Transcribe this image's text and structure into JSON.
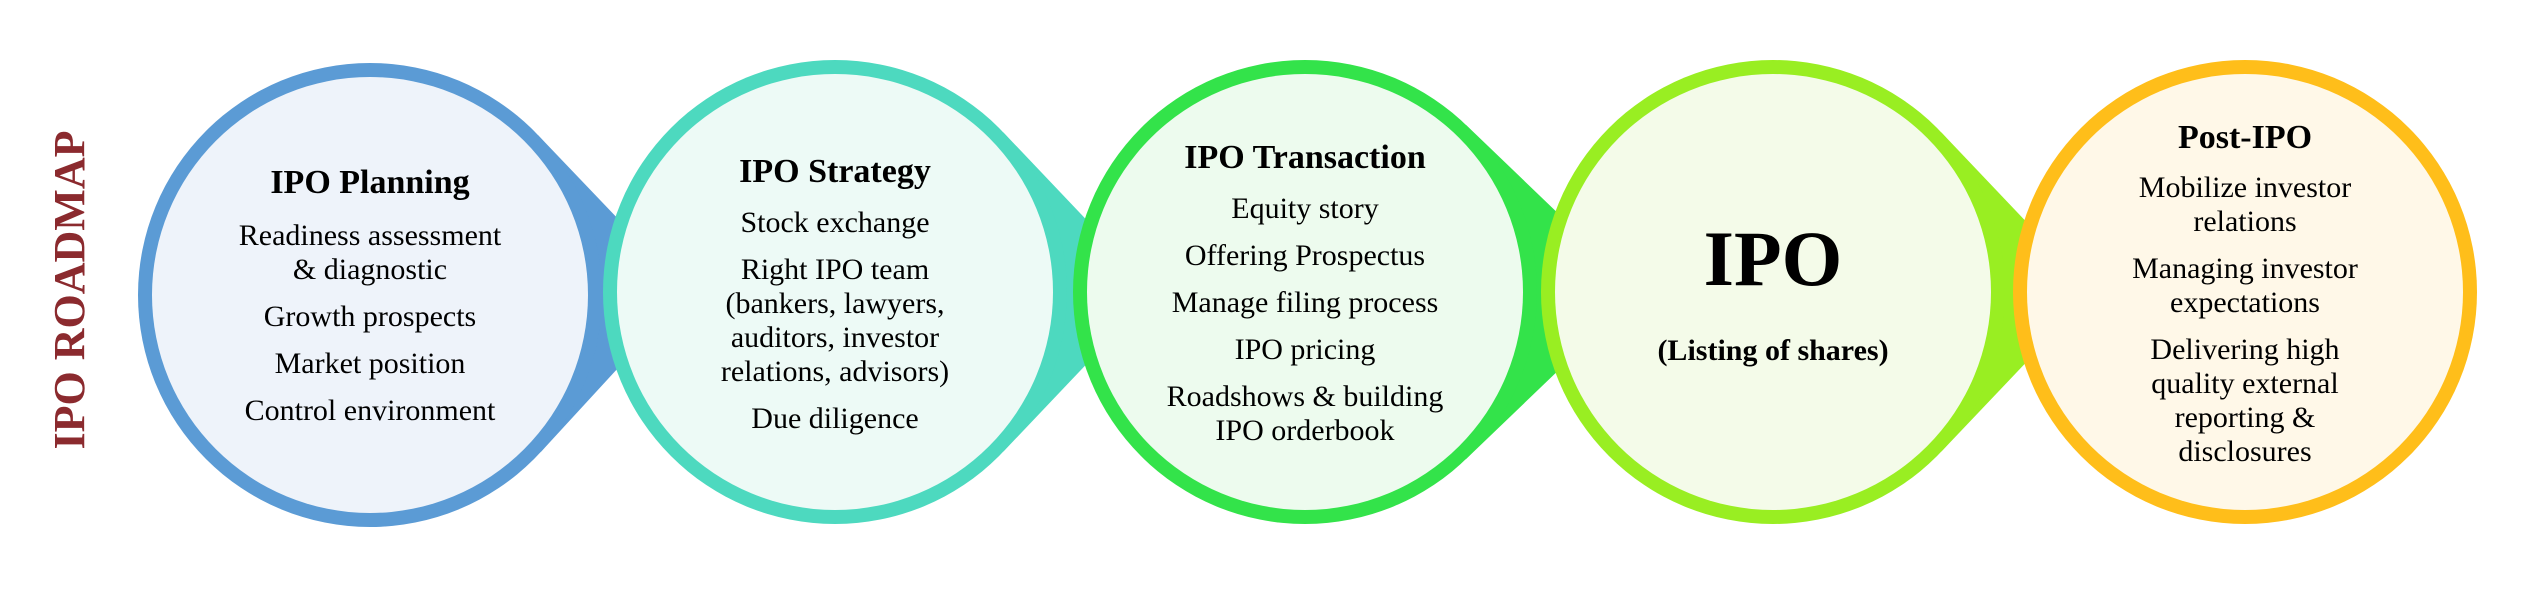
{
  "side_title": "IPO ROADMAP",
  "colors": {
    "side_title": "#8B2A2E",
    "text": "#000000"
  },
  "steps": [
    {
      "title": "IPO Planning",
      "items": [
        "Readiness assessment\n& diagnostic",
        "Growth prospects",
        "Market position",
        "Control environment"
      ],
      "ring_color": "#5B9BD5",
      "fill_color": "#EEF3FA"
    },
    {
      "title": "IPO Strategy",
      "items": [
        "Stock exchange",
        "Right IPO team\n(bankers, lawyers,\nauditors, investor\nrelations, advisors)",
        "Due diligence"
      ],
      "ring_color": "#4DD9BF",
      "fill_color": "#EDFAF6"
    },
    {
      "title": "IPO Transaction",
      "items": [
        "Equity story",
        "Offering Prospectus",
        "Manage filing process",
        "IPO pricing",
        "Roadshows & building\nIPO orderbook"
      ],
      "ring_color": "#33E34A",
      "fill_color": "#EDFBEE"
    },
    {
      "title": "IPO",
      "subtitle": "(Listing of shares)",
      "items": [],
      "ring_color": "#99EE22",
      "fill_color": "#F4FBE9"
    },
    {
      "title": "Post-IPO",
      "items": [
        "Mobilize investor\nrelations",
        "Managing investor\nexpectations",
        "Delivering high\nquality external\nreporting &\ndisclosures"
      ],
      "ring_color": "#FFBE1A",
      "fill_color": "#FFF8E8"
    }
  ]
}
